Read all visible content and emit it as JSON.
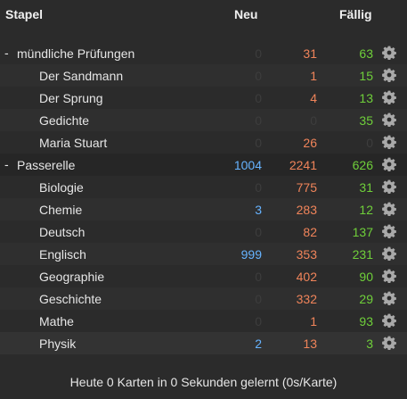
{
  "header": {
    "deck": "Stapel",
    "new": "Neu",
    "due": "Fällig"
  },
  "rows": [
    {
      "toggle": "-",
      "name": "mündliche Prüfungen",
      "level": 0,
      "new": "0",
      "review": "31",
      "due": "63"
    },
    {
      "name": "Der Sandmann",
      "level": 1,
      "new": "0",
      "review": "1",
      "due": "15"
    },
    {
      "name": "Der Sprung",
      "level": 1,
      "new": "0",
      "review": "4",
      "due": "13"
    },
    {
      "name": "Gedichte",
      "level": 1,
      "new": "0",
      "review": "0",
      "due": "35"
    },
    {
      "name": "Maria Stuart",
      "level": 1,
      "new": "0",
      "review": "26",
      "due": "0"
    },
    {
      "toggle": "-",
      "name": "Passerelle",
      "level": 0,
      "new": "1004",
      "review": "2241",
      "due": "626"
    },
    {
      "name": "Biologie",
      "level": 1,
      "new": "0",
      "review": "775",
      "due": "31"
    },
    {
      "name": "Chemie",
      "level": 1,
      "new": "3",
      "review": "283",
      "due": "12"
    },
    {
      "name": "Deutsch",
      "level": 1,
      "new": "0",
      "review": "82",
      "due": "137"
    },
    {
      "name": "Englisch",
      "level": 1,
      "new": "999",
      "review": "353",
      "due": "231"
    },
    {
      "name": "Geographie",
      "level": 1,
      "new": "0",
      "review": "402",
      "due": "90"
    },
    {
      "name": "Geschichte",
      "level": 1,
      "new": "0",
      "review": "332",
      "due": "29"
    },
    {
      "name": "Mathe",
      "level": 1,
      "new": "0",
      "review": "1",
      "due": "93"
    },
    {
      "name": "Physik",
      "level": 1,
      "new": "2",
      "review": "13",
      "due": "3"
    }
  ],
  "footer": "Heute 0 Karten in 0 Sekunden gelernt (0s/Karte)",
  "colors": {
    "new": "#66b3ff",
    "review": "#f0845a",
    "due": "#6fcf3a",
    "zero": "#3d3d3d"
  },
  "icons": {
    "options": "gear-icon"
  }
}
